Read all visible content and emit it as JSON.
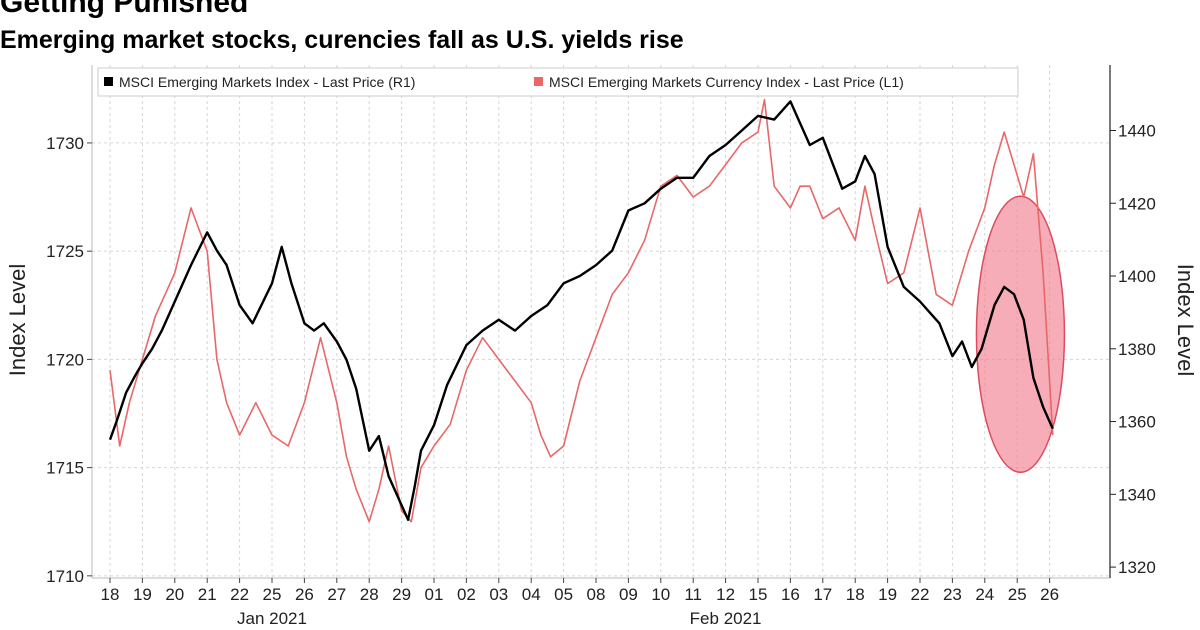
{
  "header": {
    "title": "Getting Punished",
    "subtitle": "Emerging market stocks, curencies fall as U.S. yields rise"
  },
  "chart_data": {
    "type": "line",
    "title": "Getting Punished",
    "subtitle": "Emerging market stocks, curencies fall as U.S. yields rise",
    "x_categories": [
      "18",
      "19",
      "20",
      "21",
      "22",
      "25",
      "26",
      "27",
      "28",
      "29",
      "01",
      "02",
      "03",
      "04",
      "05",
      "08",
      "09",
      "10",
      "11",
      "12",
      "15",
      "16",
      "17",
      "18",
      "19",
      "22",
      "23",
      "24",
      "25",
      "26"
    ],
    "x_month_labels": [
      {
        "label": "Jan 2021",
        "under": "25"
      },
      {
        "label": "Feb 2021",
        "under": "12"
      }
    ],
    "left_axis": {
      "label": "Index Level",
      "ticks": [
        1710,
        1715,
        1720,
        1725,
        1730
      ],
      "range": [
        1709.9,
        1733.6
      ]
    },
    "right_axis": {
      "label": "Index Level",
      "ticks": [
        1320,
        1340,
        1360,
        1380,
        1400,
        1420,
        1440
      ],
      "range": [
        1317,
        1458
      ]
    },
    "grid": true,
    "legend": {
      "placement": "top-left"
    },
    "series": [
      {
        "name": "MSCI Emerging Markets Index - Last Price (R1)",
        "axis": "right",
        "color": "#000000",
        "x": [
          0,
          0.2,
          0.5,
          0.8,
          1,
          1.3,
          1.6,
          2,
          2.5,
          3,
          3.3,
          3.6,
          4,
          4.4,
          5,
          5.3,
          5.6,
          6,
          6.3,
          6.6,
          7,
          7.3,
          7.6,
          8,
          8.3,
          8.6,
          9,
          9.2,
          9.4,
          9.6,
          10,
          10.4,
          11,
          11.5,
          12,
          12.5,
          13,
          13.5,
          14,
          14.5,
          15,
          15.5,
          16,
          16.5,
          17,
          17.5,
          18,
          18.5,
          19,
          19.5,
          20,
          20.5,
          21,
          21.3,
          21.6,
          22,
          22.3,
          22.6,
          23,
          23.3,
          23.6,
          24,
          24.5,
          25,
          25.3,
          25.6,
          26,
          26.3,
          26.6,
          26.9,
          27.1,
          27.3,
          27.6,
          27.9,
          28.2,
          28.5,
          28.8,
          29.1
        ],
        "y": [
          1355,
          1360,
          1368,
          1373,
          1376,
          1380,
          1385,
          1393,
          1403,
          1412,
          1407,
          1403,
          1392,
          1387,
          1398,
          1408,
          1398,
          1387,
          1385,
          1387,
          1382,
          1377,
          1369,
          1352,
          1356,
          1345,
          1337,
          1333,
          1342,
          1352,
          1359,
          1370,
          1381,
          1385,
          1388,
          1385,
          1389,
          1392,
          1398,
          1400,
          1403,
          1407,
          1418,
          1420,
          1424,
          1427,
          1427,
          1433,
          1436,
          1440,
          1444,
          1443,
          1448,
          1442,
          1436,
          1438,
          1431,
          1424,
          1426,
          1433,
          1428,
          1408,
          1397,
          1393,
          1390,
          1387,
          1378,
          1382,
          1375,
          1380,
          1386,
          1392,
          1397,
          1395,
          1388,
          1372,
          1364,
          1358
        ]
      },
      {
        "name": "MSCI Emerging Markets Currency Index - Last Price (L1)",
        "axis": "left",
        "color": "#e86868",
        "x": [
          0,
          0.3,
          0.6,
          1,
          1.4,
          2,
          2.5,
          3,
          3.3,
          3.6,
          4,
          4.5,
          5,
          5.5,
          6,
          6.5,
          7,
          7.3,
          7.6,
          8,
          8.3,
          8.6,
          9,
          9.3,
          9.6,
          10,
          10.5,
          11,
          11.5,
          12,
          12.5,
          13,
          13.3,
          13.6,
          14,
          14.5,
          15,
          15.5,
          16,
          16.5,
          17,
          17.5,
          18,
          18.5,
          19,
          19.5,
          20,
          20.2,
          20.5,
          21,
          21.3,
          21.6,
          22,
          22.5,
          23,
          23.3,
          23.6,
          24,
          24.5,
          25,
          25.5,
          26,
          26.5,
          27,
          27.3,
          27.6,
          27.9,
          28.2,
          28.5,
          28.8,
          29.1
        ],
        "y": [
          1719.5,
          1716,
          1718,
          1720,
          1722,
          1724,
          1727,
          1725,
          1720,
          1718,
          1716.5,
          1718,
          1716.5,
          1716,
          1718,
          1721,
          1718,
          1715.5,
          1714,
          1712.5,
          1714,
          1716,
          1713,
          1712.5,
          1715,
          1716,
          1717,
          1719.5,
          1721,
          1720,
          1719,
          1718,
          1716.5,
          1715.5,
          1716,
          1719,
          1721,
          1723,
          1724,
          1725.5,
          1728,
          1728.5,
          1727.5,
          1728,
          1729,
          1730,
          1730.5,
          1732,
          1728,
          1727,
          1728,
          1728,
          1726.5,
          1727,
          1725.5,
          1728,
          1726,
          1723.5,
          1724,
          1727,
          1723,
          1722.5,
          1725,
          1727,
          1729,
          1730.5,
          1729,
          1727.5,
          1729.5,
          1724,
          1716.5
        ]
      }
    ]
  }
}
